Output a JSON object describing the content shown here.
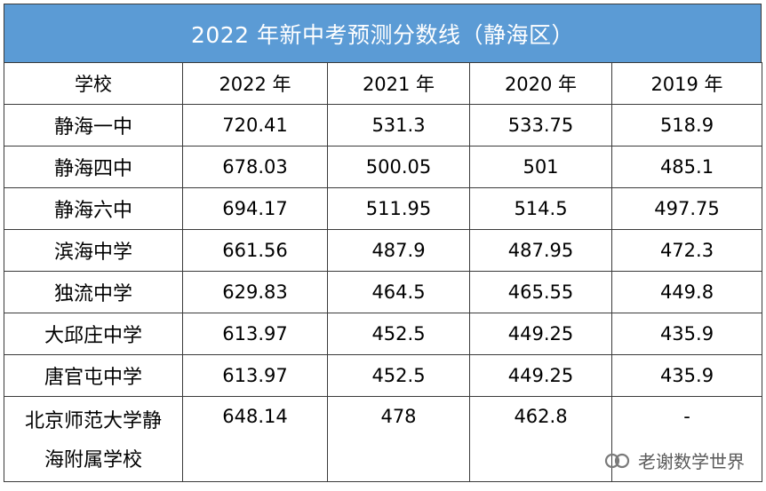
{
  "title": "2022 年新中考预测分数线（静海区）",
  "columns": [
    "学校",
    "2022 年",
    "2021 年",
    "2020 年",
    "2019 年"
  ],
  "rows": [
    {
      "school": "静海一中",
      "v2022": "720.41",
      "v2021": "531.3",
      "v2020": "533.75",
      "v2019": "518.9"
    },
    {
      "school": "静海四中",
      "v2022": "678.03",
      "v2021": "500.05",
      "v2020": "501",
      "v2019": "485.1"
    },
    {
      "school": "静海六中",
      "v2022": "694.17",
      "v2021": "511.95",
      "v2020": "514.5",
      "v2019": "497.75"
    },
    {
      "school": "滨海中学",
      "v2022": "661.56",
      "v2021": "487.9",
      "v2020": "487.95",
      "v2019": "472.3"
    },
    {
      "school": "独流中学",
      "v2022": "629.83",
      "v2021": "464.5",
      "v2020": "465.55",
      "v2019": "449.8"
    },
    {
      "school": "大邱庄中学",
      "v2022": "613.97",
      "v2021": "452.5",
      "v2020": "449.25",
      "v2019": "435.9"
    },
    {
      "school": "唐官屯中学",
      "v2022": "613.97",
      "v2021": "452.5",
      "v2020": "449.25",
      "v2019": "435.9"
    },
    {
      "school_line1": "北京师范大学静",
      "school_line2": "海附属学校",
      "v2022": "648.14",
      "v2021": "478",
      "v2020": "462.8",
      "v2019": "-"
    }
  ],
  "watermark": {
    "text": "老谢数学世界",
    "icon": "wechat-official-account-icon"
  },
  "colors": {
    "header_bg": "#5b9bd5",
    "header_text": "#ffffff",
    "border": "#3a3a3a"
  }
}
